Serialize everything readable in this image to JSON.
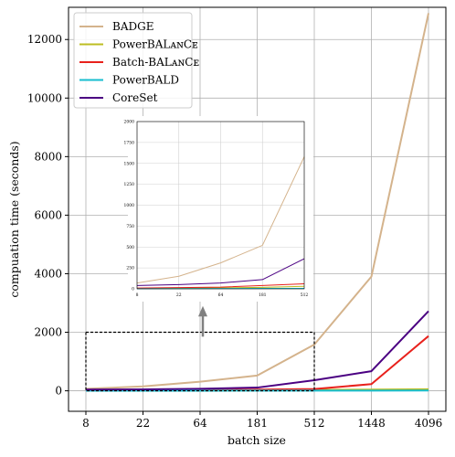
{
  "chart_data": [
    {
      "id": "main",
      "type": "line",
      "xlabel": "batch size",
      "ylabel": "compuation time (seconds)",
      "x_tick_labels": [
        "8",
        "22",
        "64",
        "181",
        "512",
        "1448",
        "4096"
      ],
      "y_ticks": [
        0,
        2000,
        4000,
        6000,
        8000,
        10000,
        12000
      ],
      "y_tick_labels": [
        "0",
        "2000",
        "4000",
        "6000",
        "8000",
        "10000",
        "12000"
      ],
      "ylim": [
        -700,
        13100
      ],
      "grid": true,
      "legend_position": "top-left",
      "series": [
        {
          "name": "BADGE",
          "color": "#d4b38c",
          "values": [
            70,
            150,
            310,
            520,
            1580,
            3900,
            12900
          ]
        },
        {
          "name": "PowerBALᴀɴCᴇ",
          "color": "#bcbd22",
          "values": [
            5,
            8,
            12,
            18,
            30,
            40,
            55
          ]
        },
        {
          "name": "Batch-BALᴀɴCᴇ",
          "color": "#e8211c",
          "values": [
            10,
            15,
            20,
            40,
            60,
            230,
            1870
          ]
        },
        {
          "name": "PowerBALD",
          "color": "#17becf",
          "values": [
            2,
            3,
            4,
            5,
            6,
            8,
            10
          ]
        },
        {
          "name": "CoreSet",
          "color": "#4b0082",
          "values": [
            40,
            50,
            70,
            110,
            360,
            670,
            2720
          ]
        }
      ],
      "zoom_box": {
        "x_from": "8",
        "x_to": "512",
        "y_from": 0,
        "y_to": 2000
      }
    },
    {
      "id": "inset",
      "type": "line",
      "x_tick_labels": [
        "8",
        "22",
        "64",
        "181",
        "512"
      ],
      "y_ticks": [
        0,
        250,
        500,
        750,
        1000,
        1250,
        1500,
        1750,
        2000
      ],
      "y_tick_labels": [
        "0",
        "250",
        "500",
        "750",
        "1000",
        "1250",
        "1500",
        "1750",
        "2000"
      ],
      "ylim": [
        0,
        2000
      ],
      "grid": true,
      "series": [
        {
          "name": "BADGE",
          "color": "#d4b38c",
          "values": [
            70,
            150,
            310,
            520,
            1580
          ]
        },
        {
          "name": "PowerBALᴀɴCᴇ",
          "color": "#bcbd22",
          "values": [
            5,
            8,
            12,
            18,
            30
          ]
        },
        {
          "name": "Batch-BALᴀɴCᴇ",
          "color": "#e8211c",
          "values": [
            10,
            15,
            20,
            40,
            60
          ]
        },
        {
          "name": "PowerBALD",
          "color": "#17becf",
          "values": [
            2,
            3,
            4,
            5,
            6
          ]
        },
        {
          "name": "CoreSet",
          "color": "#4b0082",
          "values": [
            40,
            50,
            70,
            110,
            360
          ]
        }
      ]
    }
  ]
}
